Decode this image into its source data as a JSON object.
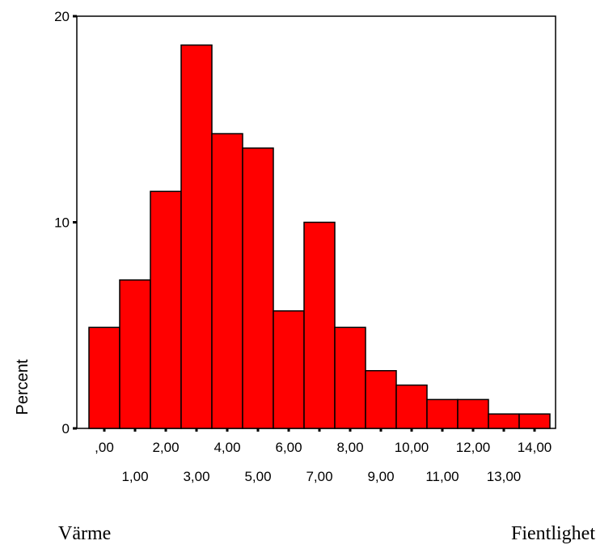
{
  "chart_data": {
    "type": "bar",
    "categories": [
      ",00",
      "1,00",
      "2,00",
      "3,00",
      "4,00",
      "5,00",
      "6,00",
      "7,00",
      "8,00",
      "9,00",
      "10,00",
      "11,00",
      "12,00",
      "13,00",
      "14,00"
    ],
    "values": [
      4.9,
      7.2,
      11.5,
      18.6,
      14.3,
      13.6,
      5.7,
      10.0,
      4.9,
      2.8,
      2.1,
      1.4,
      1.4,
      0.7,
      0.7
    ],
    "ylabel": "Percent",
    "ylim": [
      0,
      20
    ],
    "yticks": [
      0,
      10,
      20
    ],
    "bar_color": "#ff0000",
    "grid": false
  },
  "captions": {
    "left": "Värme",
    "right": "Fientlighet"
  }
}
